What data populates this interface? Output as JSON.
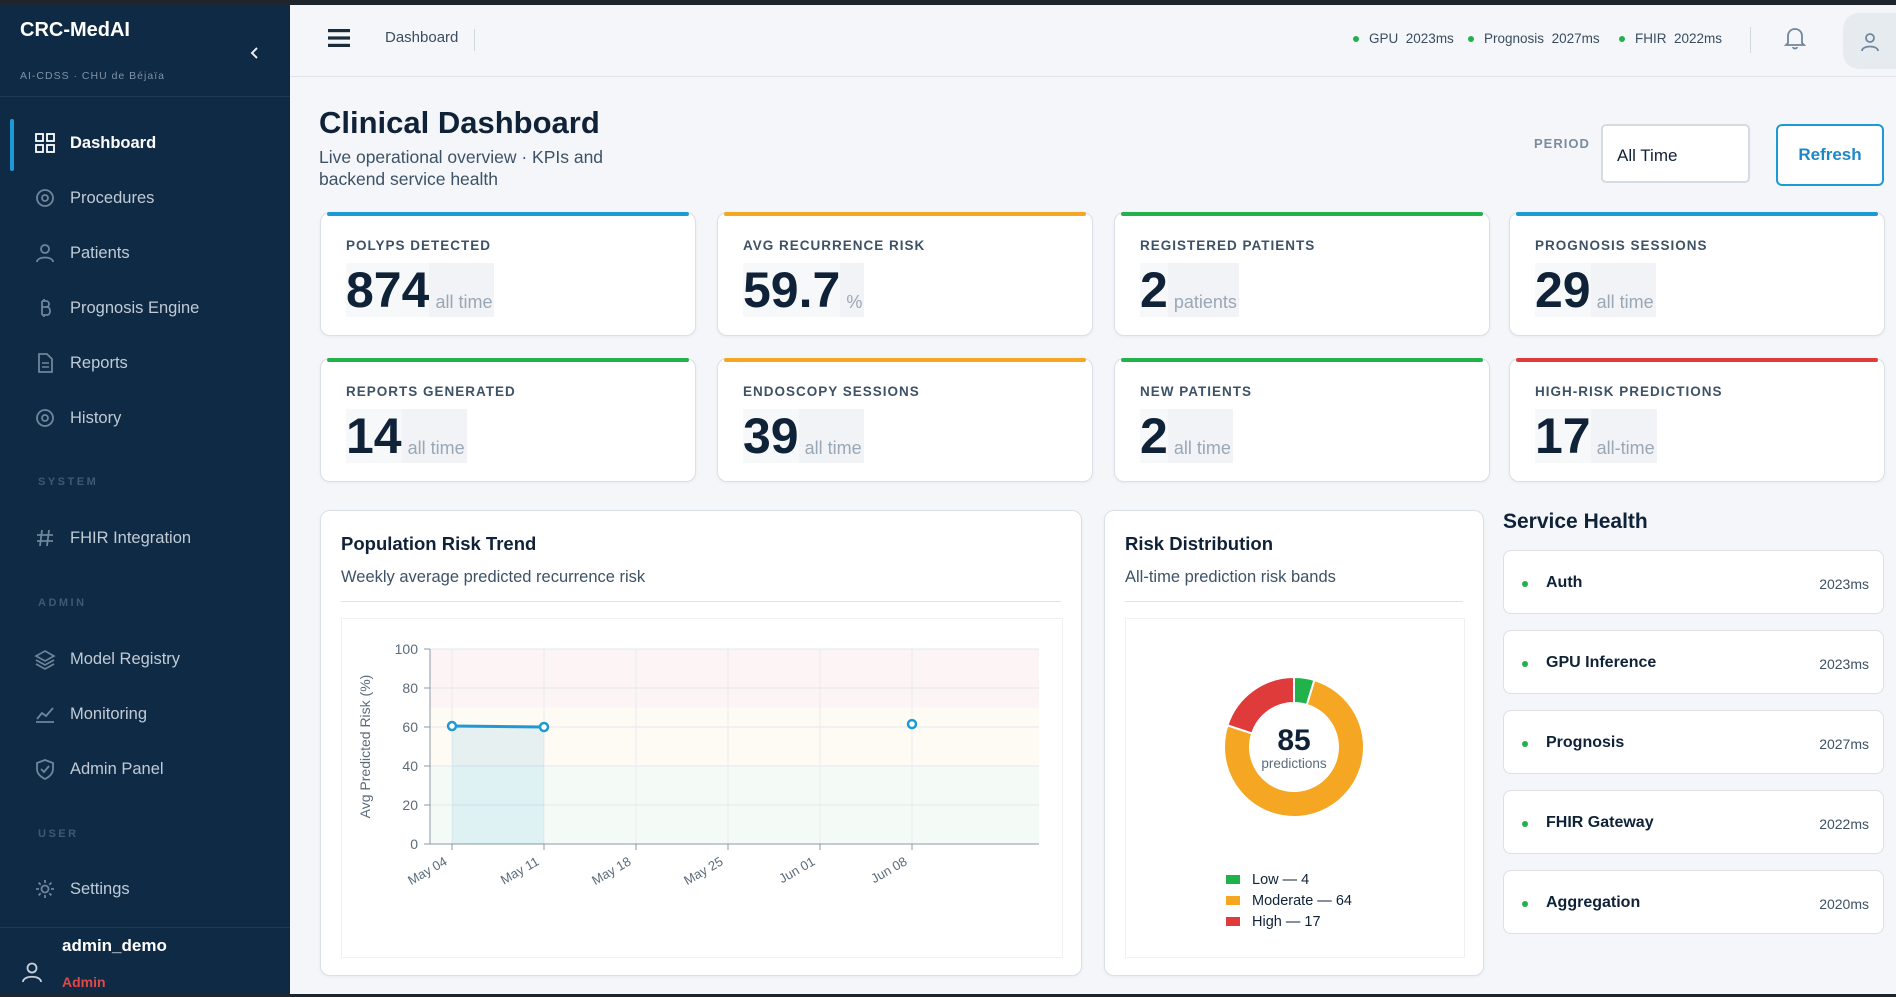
{
  "app": {
    "name": "CRC-MedAI",
    "subtitle": "AI-CDSS · CHU de Béjaïa"
  },
  "sidebar": {
    "items": [
      {
        "label": "Dashboard",
        "icon": "grid-icon",
        "active": true
      },
      {
        "label": "Procedures",
        "icon": "target-icon"
      },
      {
        "label": "Patients",
        "icon": "person-icon"
      },
      {
        "label": "Prognosis Engine",
        "icon": "bitcoin-icon"
      },
      {
        "label": "Reports",
        "icon": "document-icon"
      },
      {
        "label": "History",
        "icon": "target-icon"
      },
      {
        "label": "FHIR Integration",
        "icon": "hash-icon"
      },
      {
        "label": "Model Registry",
        "icon": "layers-icon"
      },
      {
        "label": "Monitoring",
        "icon": "chart-line-icon"
      },
      {
        "label": "Admin Panel",
        "icon": "shield-check-icon"
      },
      {
        "label": "Settings",
        "icon": "gear-icon"
      }
    ],
    "sections": {
      "system": "SYSTEM",
      "admin": "ADMIN",
      "user": "USER"
    },
    "user": {
      "name": "admin_demo",
      "role": "Admin"
    }
  },
  "topbar": {
    "breadcrumb": "Dashboard",
    "status": [
      {
        "name": "GPU",
        "latency": "2023ms"
      },
      {
        "name": "Prognosis",
        "latency": "2027ms"
      },
      {
        "name": "FHIR",
        "latency": "2022ms"
      }
    ]
  },
  "header": {
    "title": "Clinical Dashboard",
    "subtitle": "Live operational overview · KPIs and backend service health",
    "period_label": "PERIOD",
    "period_value": "All Time",
    "refresh_label": "Refresh"
  },
  "kpis": [
    {
      "label": "POLYPS DETECTED",
      "value": "874",
      "unit": "all time",
      "accent": "#1d9ad6"
    },
    {
      "label": "AVG RECURRENCE RISK",
      "value": "59.7",
      "unit": "%",
      "accent": "#f5a623"
    },
    {
      "label": "REGISTERED PATIENTS",
      "value": "2",
      "unit": "patients",
      "accent": "#22b24c"
    },
    {
      "label": "PROGNOSIS SESSIONS",
      "value": "29",
      "unit": "all time",
      "accent": "#1d9ad6"
    },
    {
      "label": "REPORTS GENERATED",
      "value": "14",
      "unit": "all time",
      "accent": "#22b24c"
    },
    {
      "label": "ENDOSCOPY SESSIONS",
      "value": "39",
      "unit": "all time",
      "accent": "#f5a623"
    },
    {
      "label": "NEW PATIENTS",
      "value": "2",
      "unit": "all time",
      "accent": "#22b24c"
    },
    {
      "label": "HIGH-RISK PREDICTIONS",
      "value": "17",
      "unit": "all-time",
      "accent": "#e03b3b"
    }
  ],
  "trend": {
    "title": "Population Risk Trend",
    "subtitle": "Weekly average predicted recurrence risk"
  },
  "distribution": {
    "title": "Risk Distribution",
    "subtitle": "All-time prediction risk bands",
    "center_value": "85",
    "center_label": "predictions"
  },
  "service_health": {
    "title": "Service Health",
    "services": [
      {
        "name": "Auth",
        "latency": "2023ms"
      },
      {
        "name": "GPU Inference",
        "latency": "2023ms"
      },
      {
        "name": "Prognosis",
        "latency": "2027ms"
      },
      {
        "name": "FHIR Gateway",
        "latency": "2022ms"
      },
      {
        "name": "Aggregation",
        "latency": "2020ms"
      }
    ]
  },
  "chart_data": [
    {
      "type": "line",
      "title": "",
      "xlabel": "",
      "ylabel": "Avg Predicted Risk (%)",
      "x": [
        "May 04",
        "May 11",
        "May 18",
        "May 25",
        "Jun 01",
        "Jun 08"
      ],
      "series": [
        {
          "values": [
            60.5,
            60,
            null,
            null,
            null,
            61.5
          ]
        }
      ],
      "ylim": [
        0,
        100
      ],
      "yticks": [
        0,
        20,
        40,
        60,
        80,
        100
      ],
      "bands": [
        {
          "from": 0,
          "to": 40,
          "color": "#22b24c"
        },
        {
          "from": 40,
          "to": 70,
          "color": "#f5a623"
        },
        {
          "from": 70,
          "to": 100,
          "color": "#e03b3b"
        }
      ],
      "line_color": "#1d9ad6",
      "grid": true
    },
    {
      "type": "pie",
      "title": "",
      "categories": [
        "Low",
        "Moderate",
        "High"
      ],
      "values": [
        4,
        64,
        17
      ],
      "legend": [
        "Low — 4",
        "Moderate — 64",
        "High — 17"
      ],
      "colors": [
        "#22b24c",
        "#f5a623",
        "#e03b3b"
      ],
      "legend_position": "bottom"
    }
  ]
}
